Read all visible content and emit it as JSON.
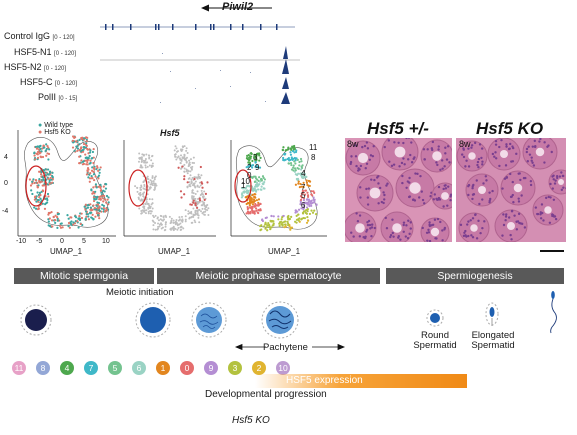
{
  "genome_browser": {
    "gene": "Piwil2",
    "tracks": [
      {
        "name": "Control IgG",
        "range": "[0 - 120]"
      },
      {
        "name": "HSF5-N1",
        "range": "[0 - 120]"
      },
      {
        "name": "HSF5-N2",
        "range": "[0 - 120]"
      },
      {
        "name": "HSF5-C",
        "range": "[0 - 120]"
      },
      {
        "name": "PolII",
        "range": "[0 - 15]"
      }
    ]
  },
  "umap": {
    "legend": {
      "wild_type": "Wild type",
      "ko": "Hsf5 KO"
    },
    "colors": {
      "wild_type": "#3aa6a0",
      "ko": "#e0776a",
      "grey": "#bfbfbf",
      "circle": "#cc2222"
    },
    "panel2_title": "Hsf5",
    "axis_label": "UMAP_1",
    "y_ticks": [
      "4",
      "0",
      "-4"
    ],
    "x_ticks": [
      "-10",
      "-5",
      "0",
      "5",
      "10"
    ],
    "panel3_cluster_labels": [
      "11",
      "8",
      "4",
      "7",
      "5",
      "6",
      "1",
      "0",
      "9",
      "3",
      "2",
      "10"
    ]
  },
  "histology": {
    "left_title": "Hsf5 +/-",
    "right_title": "Hsf5 KO",
    "left_age": "8w",
    "right_age": "8w"
  },
  "stages": {
    "bands": [
      "Mitotic spermgonia",
      "Meiotic prophase spermatocyte",
      "Spermiogenesis"
    ],
    "meiotic_initiation": "Meiotic initiation",
    "pachytene": "Pachytene",
    "round_spermatid": "Round\nSpermatid",
    "elongated_spermatid": "Elongated\nSpermatid"
  },
  "clusters": {
    "order": [
      "11",
      "8",
      "4",
      "7",
      "5",
      "6",
      "1",
      "0",
      "9",
      "3",
      "2",
      "10"
    ],
    "colors": [
      "#e7a1c7",
      "#93a7d6",
      "#4ea84e",
      "#3fb8c8",
      "#74c38f",
      "#9ad3c4",
      "#e2861f",
      "#e56d6d",
      "#b48ed3",
      "#b3c23f",
      "#e0b430",
      "#bd9bd1"
    ]
  },
  "hsf5_expression_label": "HSF5 expression",
  "developmental_progression_label": "Developmental progression",
  "ko_label": "Hsf5 KO"
}
